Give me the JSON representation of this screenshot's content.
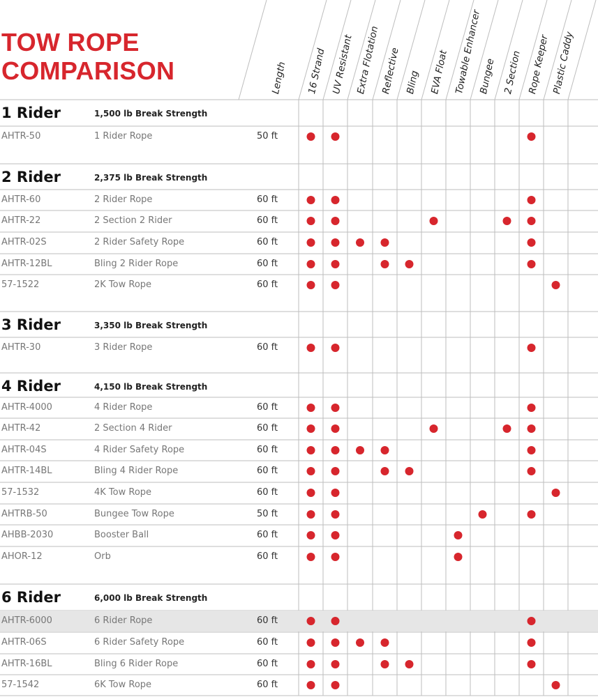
{
  "title": {
    "line1": "TOW ROPE",
    "line2": "COMPARISON"
  },
  "colors": {
    "accent": "#d7262d",
    "shade": "#e6e6e6",
    "grid": "#bdbdbd"
  },
  "columns": {
    "length": "Length",
    "features": [
      "16 Strand",
      "UV Resistant",
      "Extra Flotation",
      "Reflective",
      "Bling",
      "EVA Float",
      "Towable Enhancer",
      "Bungee",
      "2 Section",
      "Rope Keeper",
      "Plastic Caddy"
    ]
  },
  "groups": [
    {
      "name": "1 Rider",
      "strength": "1,500 lb Break Strength",
      "rows": [
        {
          "model": "AHTR-50",
          "desc": "1 Rider Rope",
          "length": "50 ft",
          "features": [
            1,
            1,
            0,
            0,
            0,
            0,
            0,
            0,
            0,
            1,
            0
          ]
        }
      ]
    },
    {
      "name": "2 Rider",
      "strength": "2,375 lb Break Strength",
      "rows": [
        {
          "model": "AHTR-60",
          "desc": "2 Rider Rope",
          "length": "60 ft",
          "features": [
            1,
            1,
            0,
            0,
            0,
            0,
            0,
            0,
            0,
            1,
            0
          ]
        },
        {
          "model": "AHTR-22",
          "desc": "2 Section 2 Rider",
          "length": "60 ft",
          "features": [
            1,
            1,
            0,
            0,
            0,
            1,
            0,
            0,
            1,
            1,
            0
          ]
        },
        {
          "model": "AHTR-02S",
          "desc": "2 Rider Safety Rope",
          "length": "60 ft",
          "features": [
            1,
            1,
            1,
            1,
            0,
            0,
            0,
            0,
            0,
            1,
            0
          ]
        },
        {
          "model": "AHTR-12BL",
          "desc": "Bling 2 Rider Rope",
          "length": "60 ft",
          "features": [
            1,
            1,
            0,
            1,
            1,
            0,
            0,
            0,
            0,
            1,
            0
          ]
        },
        {
          "model": "57-1522",
          "desc": "2K Tow Rope",
          "length": "60 ft",
          "features": [
            1,
            1,
            0,
            0,
            0,
            0,
            0,
            0,
            0,
            0,
            1
          ]
        }
      ]
    },
    {
      "name": "3 Rider",
      "strength": "3,350 lb Break Strength",
      "rows": [
        {
          "model": "AHTR-30",
          "desc": "3 Rider Rope",
          "length": "60 ft",
          "features": [
            1,
            1,
            0,
            0,
            0,
            0,
            0,
            0,
            0,
            1,
            0
          ]
        }
      ]
    },
    {
      "name": "4 Rider",
      "strength": "4,150 lb Break Strength",
      "rows": [
        {
          "model": "AHTR-4000",
          "desc": "4 Rider Rope",
          "length": "60 ft",
          "features": [
            1,
            1,
            0,
            0,
            0,
            0,
            0,
            0,
            0,
            1,
            0
          ]
        },
        {
          "model": "AHTR-42",
          "desc": "2 Section 4 Rider",
          "length": "60 ft",
          "features": [
            1,
            1,
            0,
            0,
            0,
            1,
            0,
            0,
            1,
            1,
            0
          ]
        },
        {
          "model": "AHTR-04S",
          "desc": "4 Rider Safety Rope",
          "length": "60 ft",
          "features": [
            1,
            1,
            1,
            1,
            0,
            0,
            0,
            0,
            0,
            1,
            0
          ]
        },
        {
          "model": "AHTR-14BL",
          "desc": "Bling 4 Rider Rope",
          "length": "60 ft",
          "features": [
            1,
            1,
            0,
            1,
            1,
            0,
            0,
            0,
            0,
            1,
            0
          ]
        },
        {
          "model": "57-1532",
          "desc": "4K Tow Rope",
          "length": "60 ft",
          "features": [
            1,
            1,
            0,
            0,
            0,
            0,
            0,
            0,
            0,
            0,
            1
          ]
        },
        {
          "model": "AHTRB-50",
          "desc": "Bungee Tow Rope",
          "length": "50 ft",
          "features": [
            1,
            1,
            0,
            0,
            0,
            0,
            0,
            1,
            0,
            1,
            0
          ]
        },
        {
          "model": "AHBB-2030",
          "desc": "Booster Ball",
          "length": "60 ft",
          "features": [
            1,
            1,
            0,
            0,
            0,
            0,
            1,
            0,
            0,
            0,
            0
          ]
        },
        {
          "model": "AHOR-12",
          "desc": "Orb",
          "length": "60 ft",
          "features": [
            1,
            1,
            0,
            0,
            0,
            0,
            1,
            0,
            0,
            0,
            0
          ]
        }
      ]
    },
    {
      "name": "6 Rider",
      "strength": "6,000 lb Break Strength",
      "rows": [
        {
          "model": "AHTR-6000",
          "desc": "6 Rider Rope",
          "length": "60 ft",
          "highlight": true,
          "features": [
            1,
            1,
            0,
            0,
            0,
            0,
            0,
            0,
            0,
            1,
            0
          ]
        },
        {
          "model": "AHTR-06S",
          "desc": "6 Rider Safety Rope",
          "length": "60 ft",
          "features": [
            1,
            1,
            1,
            1,
            0,
            0,
            0,
            0,
            0,
            1,
            0
          ]
        },
        {
          "model": "AHTR-16BL",
          "desc": "Bling 6 Rider Rope",
          "length": "60 ft",
          "features": [
            1,
            1,
            0,
            1,
            1,
            0,
            0,
            0,
            0,
            1,
            0
          ]
        },
        {
          "model": "57-1542",
          "desc": "6K Tow Rope",
          "length": "60 ft",
          "features": [
            1,
            1,
            0,
            0,
            0,
            0,
            0,
            0,
            0,
            0,
            1
          ]
        }
      ]
    }
  ]
}
